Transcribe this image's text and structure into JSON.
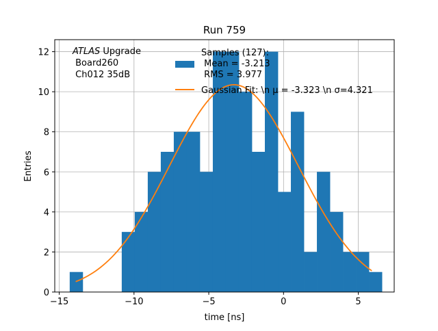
{
  "chart_data": {
    "type": "bar",
    "title": "Run 759",
    "xlabel": "time [ns]",
    "ylabel": "Entries",
    "xlim": [
      -15.3,
      7.4
    ],
    "ylim": [
      0,
      12.6
    ],
    "xticks": [
      -15,
      -10,
      -5,
      0,
      5
    ],
    "yticks": [
      0,
      2,
      4,
      6,
      8,
      10,
      12
    ],
    "xtick_labels": [
      "−15",
      "−10",
      "−5",
      "0",
      "5"
    ],
    "ytick_labels": [
      "0",
      "2",
      "4",
      "6",
      "8",
      "10",
      "12"
    ],
    "grid": true,
    "annotation": {
      "experiment": "ATLAS",
      "line1_suffix": " Upgrade",
      "line2": " Board260",
      "line3": " Ch012 35dB"
    },
    "histogram": {
      "name": "Samples (127):",
      "color": "#1f77b4",
      "bins": [
        {
          "x0": -14.3,
          "x1": -13.43,
          "count": 1
        },
        {
          "x0": -13.43,
          "x1": -12.56,
          "count": 0
        },
        {
          "x0": -12.56,
          "x1": -11.69,
          "count": 0
        },
        {
          "x0": -11.69,
          "x1": -10.82,
          "count": 0
        },
        {
          "x0": -10.82,
          "x1": -9.95,
          "count": 3
        },
        {
          "x0": -9.95,
          "x1": -9.08,
          "count": 4
        },
        {
          "x0": -9.08,
          "x1": -8.21,
          "count": 6
        },
        {
          "x0": -8.21,
          "x1": -7.34,
          "count": 7
        },
        {
          "x0": -7.34,
          "x1": -6.47,
          "count": 8
        },
        {
          "x0": -6.47,
          "x1": -5.6,
          "count": 8
        },
        {
          "x0": -5.6,
          "x1": -4.73,
          "count": 6
        },
        {
          "x0": -4.73,
          "x1": -3.86,
          "count": 12
        },
        {
          "x0": -3.86,
          "x1": -2.99,
          "count": 12
        },
        {
          "x0": -2.99,
          "x1": -2.12,
          "count": 10
        },
        {
          "x0": -2.12,
          "x1": -1.25,
          "count": 7
        },
        {
          "x0": -1.25,
          "x1": -0.38,
          "count": 12
        },
        {
          "x0": -0.38,
          "x1": 0.49,
          "count": 5
        },
        {
          "x0": 0.49,
          "x1": 1.36,
          "count": 9
        },
        {
          "x0": 1.36,
          "x1": 2.23,
          "count": 2
        },
        {
          "x0": 2.23,
          "x1": 3.1,
          "count": 6
        },
        {
          "x0": 3.1,
          "x1": 3.97,
          "count": 4
        },
        {
          "x0": 3.97,
          "x1": 4.84,
          "count": 2
        },
        {
          "x0": 4.84,
          "x1": 5.71,
          "count": 2
        },
        {
          "x0": 5.71,
          "x1": 6.58,
          "count": 1
        }
      ]
    },
    "fit": {
      "name": "Gaussian Fit: \\n μ = -3.323 \\n σ=4.321",
      "color": "#ff7f0e",
      "mu": -3.323,
      "sigma": 4.321,
      "amplitude": 10.35,
      "x_range": [
        -13.9,
        5.9
      ]
    },
    "legend": {
      "location": "upper-right",
      "hist_label": "Samples (127):",
      "hist_mean": " Mean = -3.213",
      "hist_rms": " RMS = 3.977",
      "fit_label": "Gaussian Fit: \\n μ = -3.323 \\n σ=4.321"
    }
  }
}
